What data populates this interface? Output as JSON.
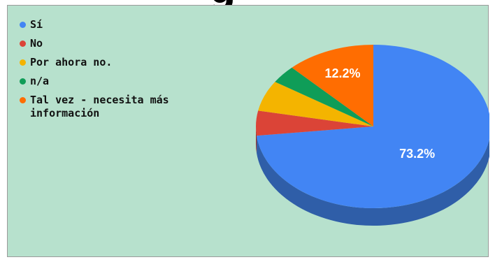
{
  "chart_data": {
    "type": "pie",
    "three_d": true,
    "legend_position": "top-left",
    "slices": [
      {
        "label": "Sí",
        "value": 73.2,
        "color": "#4285f4",
        "side_color": "#2f5ea8",
        "show_label": "73.2%"
      },
      {
        "label": "No",
        "value": 4.9,
        "color": "#db4437",
        "side_color": "#9c2f27",
        "show_label": ""
      },
      {
        "label": "Por ahora no.",
        "value": 6.1,
        "color": "#f4b400",
        "side_color": "#ae8000",
        "show_label": ""
      },
      {
        "label": "n/a",
        "value": 3.6,
        "color": "#0f9d58",
        "side_color": "#0a6f3e",
        "show_label": ""
      },
      {
        "label": "Tal vez - necesita más información",
        "value": 12.2,
        "color": "#ff6d01",
        "side_color": "#b84e00",
        "show_label": "12.2%"
      }
    ]
  },
  "legend": {
    "items": [
      {
        "label": "Sí",
        "color": "#4285f4"
      },
      {
        "label": "No",
        "color": "#db4437"
      },
      {
        "label": "Por ahora no.",
        "color": "#f4b400"
      },
      {
        "label": "n/a",
        "color": "#0f9d58"
      },
      {
        "label": "Tal vez - necesita más información",
        "color": "#ff6d01"
      }
    ]
  },
  "title_fragment": "g",
  "panel_color": "#b7e1cd"
}
